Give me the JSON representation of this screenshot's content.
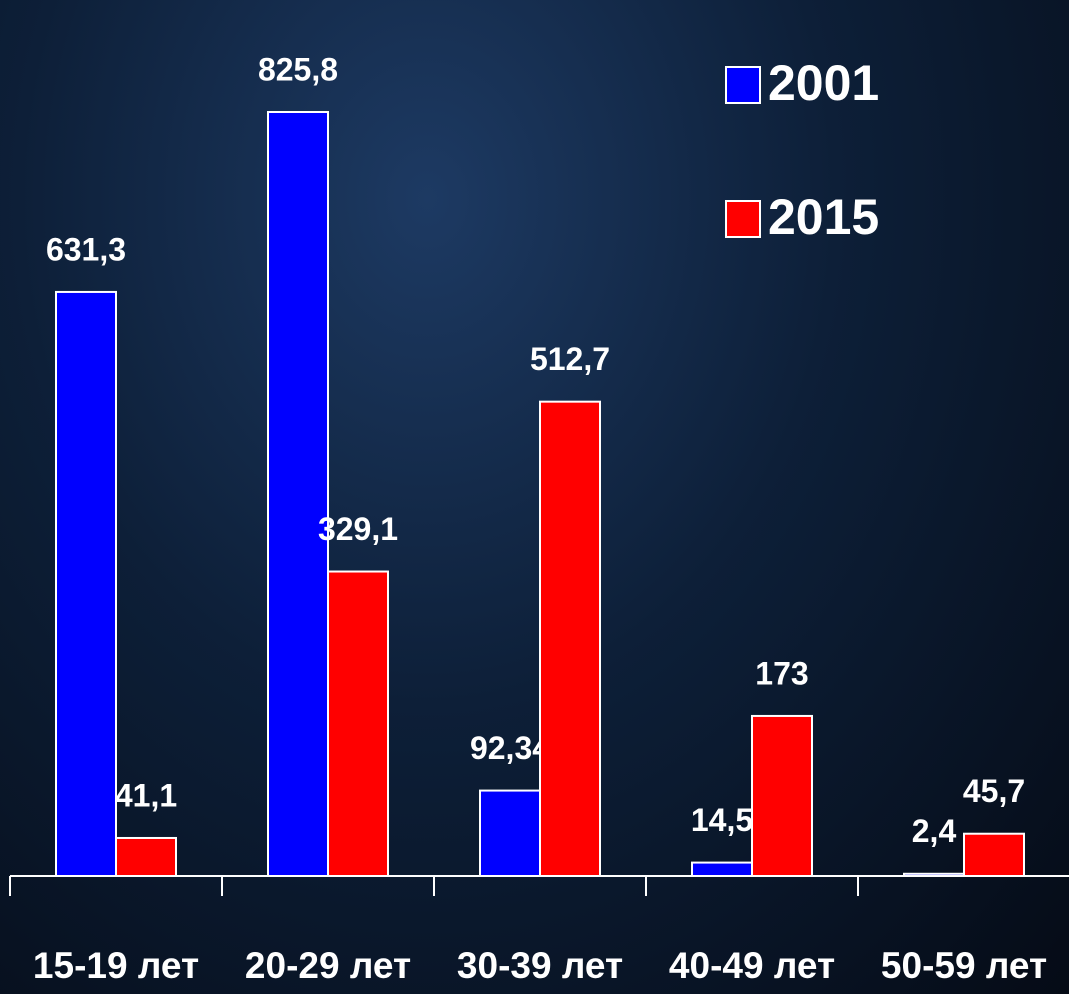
{
  "chart_data": {
    "type": "bar",
    "categories": [
      "15-19 лет",
      "20-29 лет",
      "30-39 лет",
      "40-49 лет",
      "50-59 лет"
    ],
    "series": [
      {
        "name": "2001",
        "color": "#0000ff",
        "values": [
          631.3,
          825.8,
          92.34,
          14.5,
          2.4
        ],
        "value_labels": [
          "631,3",
          "825,8",
          "92,34",
          "14,5",
          "2,4"
        ]
      },
      {
        "name": "2015",
        "color": "#ff0000",
        "values": [
          41.1,
          329.1,
          512.7,
          173,
          45.7
        ],
        "value_labels": [
          "41,1",
          "329,1",
          "512,7",
          "173",
          "45,7"
        ]
      }
    ],
    "legend": "upper right"
  }
}
